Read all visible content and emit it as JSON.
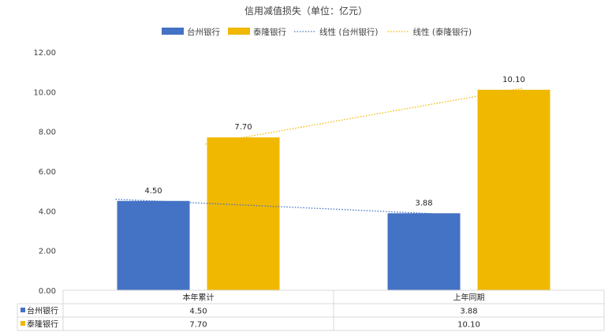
{
  "chart_data": {
    "type": "bar",
    "title": "信用减值损失（单位：亿元）",
    "categories": [
      "本年累计",
      "上年同期"
    ],
    "series": [
      {
        "name": "台州银行",
        "values": [
          4.5,
          3.88
        ],
        "labels": [
          "4.50",
          "3.88"
        ],
        "color": "#4472C4"
      },
      {
        "name": "泰隆银行",
        "values": [
          7.7,
          10.1
        ],
        "labels": [
          "7.70",
          "10.10"
        ],
        "color": "#F0B800"
      }
    ],
    "trendlines": [
      {
        "name": "线性 (台州银行)",
        "color": "#4472C4"
      },
      {
        "name": "线性 (泰隆银行)",
        "color": "#F0B800"
      }
    ],
    "ylim": [
      0,
      12
    ],
    "yticks": [
      "0.00",
      "2.00",
      "4.00",
      "6.00",
      "8.00",
      "10.00",
      "12.00"
    ],
    "legend_position": "top",
    "grid": false,
    "data_table": true
  }
}
